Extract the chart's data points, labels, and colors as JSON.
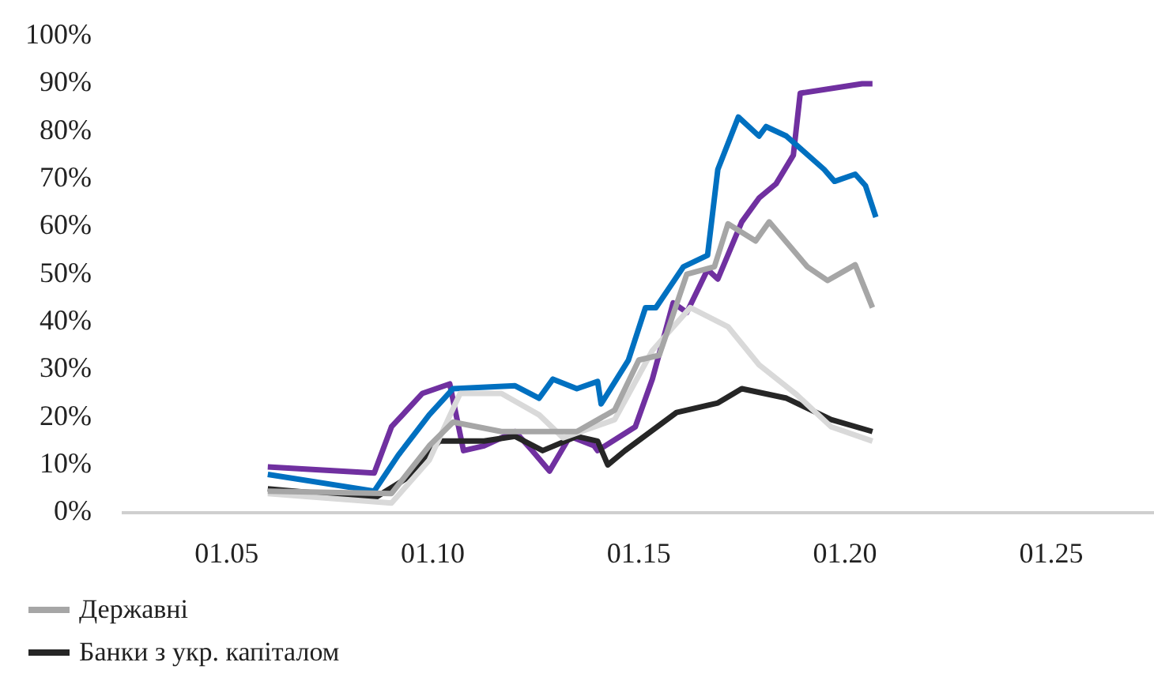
{
  "chart_data": {
    "type": "line",
    "xlim": [
      "2002-07",
      "2027-07"
    ],
    "xticks": [
      {
        "value": "2005-01",
        "label": "01.05"
      },
      {
        "value": "2010-01",
        "label": "01.10"
      },
      {
        "value": "2015-01",
        "label": "01.15"
      },
      {
        "value": "2020-01",
        "label": "01.20"
      },
      {
        "value": "2025-01",
        "label": "01.25"
      }
    ],
    "ylim": [
      0,
      100
    ],
    "yticks": [
      {
        "value": 0,
        "label": "0%"
      },
      {
        "value": 10,
        "label": "10%"
      },
      {
        "value": 20,
        "label": "20%"
      },
      {
        "value": 30,
        "label": "30%"
      },
      {
        "value": 40,
        "label": "40%"
      },
      {
        "value": 50,
        "label": "50%"
      },
      {
        "value": 60,
        "label": "60%"
      },
      {
        "value": 70,
        "label": "70%"
      },
      {
        "value": 80,
        "label": "80%"
      },
      {
        "value": 90,
        "label": "90%"
      },
      {
        "value": 100,
        "label": "100%"
      }
    ],
    "grid": false,
    "legend": "bottom left",
    "marker": "none",
    "line_style": "solid",
    "series": [
      {
        "name": "Державні",
        "color": "#a6a6a6",
        "x": [
          "2006-01",
          "2009-01",
          "2009-12",
          "2010-07",
          "2011-09",
          "2012-10",
          "2013-07",
          "2014-06",
          "2015-01",
          "2015-07",
          "2016-03",
          "2016-11",
          "2017-03",
          "2017-11",
          "2018-03",
          "2019-02",
          "2019-08",
          "2020-04",
          "2020-09"
        ],
        "values": [
          4.5,
          4,
          14,
          19,
          17,
          17,
          17,
          21.5,
          32,
          33,
          50,
          51.6,
          60.6,
          57,
          61,
          51.6,
          48.7,
          52,
          43
        ]
      },
      {
        "color": "#d9d9d9",
        "x": [
          "2006-01",
          "2009-01",
          "2009-12",
          "2010-09",
          "2011-09",
          "2012-08",
          "2013-03",
          "2014-06",
          "2015-05",
          "2016-04",
          "2017-03",
          "2017-12",
          "2018-11",
          "2019-09",
          "2020-09"
        ],
        "values": [
          4,
          2,
          11,
          25,
          25,
          20.5,
          15.7,
          19.5,
          34,
          43,
          39,
          31,
          24.7,
          18,
          15
        ]
      },
      {
        "name": "Банки з укр. капіталом",
        "color": "#262626",
        "x": [
          "2006-01",
          "2008-08",
          "2009-05",
          "2010-03",
          "2011-04",
          "2012-01",
          "2012-09",
          "2013-07",
          "2014-01",
          "2014-04",
          "2014-09",
          "2015-12",
          "2016-12",
          "2017-07",
          "2018-08",
          "2019-09",
          "2020-09"
        ],
        "values": [
          5,
          3,
          7,
          15,
          15,
          16,
          13,
          16,
          15,
          10,
          13,
          21,
          23,
          26,
          24,
          19.5,
          17
        ]
      },
      {
        "color": "#0070c0",
        "x": [
          "2006-01",
          "2008-08",
          "2009-03",
          "2009-12",
          "2010-07",
          "2012-01",
          "2012-08",
          "2012-12",
          "2013-07",
          "2014-01",
          "2014-02",
          "2014-10",
          "2015-03",
          "2015-06",
          "2016-02",
          "2016-09",
          "2016-12",
          "2017-06",
          "2017-12",
          "2018-02",
          "2018-08",
          "2019-07",
          "2019-10",
          "2020-04",
          "2020-07",
          "2020-10"
        ],
        "values": [
          8,
          4.5,
          12,
          20.5,
          26,
          26.6,
          24,
          28,
          26,
          27.5,
          22.8,
          32,
          43,
          43,
          51.6,
          54,
          72,
          83,
          79,
          81,
          79,
          72,
          69.5,
          71,
          68.6,
          62
        ]
      },
      {
        "color": "#7030a0",
        "x": [
          "2006-01",
          "2008-08",
          "2009-01",
          "2009-10",
          "2010-06",
          "2010-10",
          "2011-04",
          "2012-01",
          "2012-06",
          "2012-11",
          "2013-05",
          "2013-12",
          "2014-01",
          "2014-12",
          "2015-05",
          "2015-11",
          "2016-03",
          "2016-09",
          "2016-12",
          "2017-07",
          "2017-12",
          "2018-05",
          "2018-10",
          "2018-12",
          "2020-06",
          "2020-09"
        ],
        "values": [
          9.6,
          8.3,
          18,
          25,
          27,
          13,
          14,
          17,
          13,
          8.7,
          16,
          14,
          13,
          18,
          28,
          44,
          42,
          51,
          49,
          61,
          66,
          69,
          75,
          88,
          90,
          90
        ]
      }
    ]
  }
}
